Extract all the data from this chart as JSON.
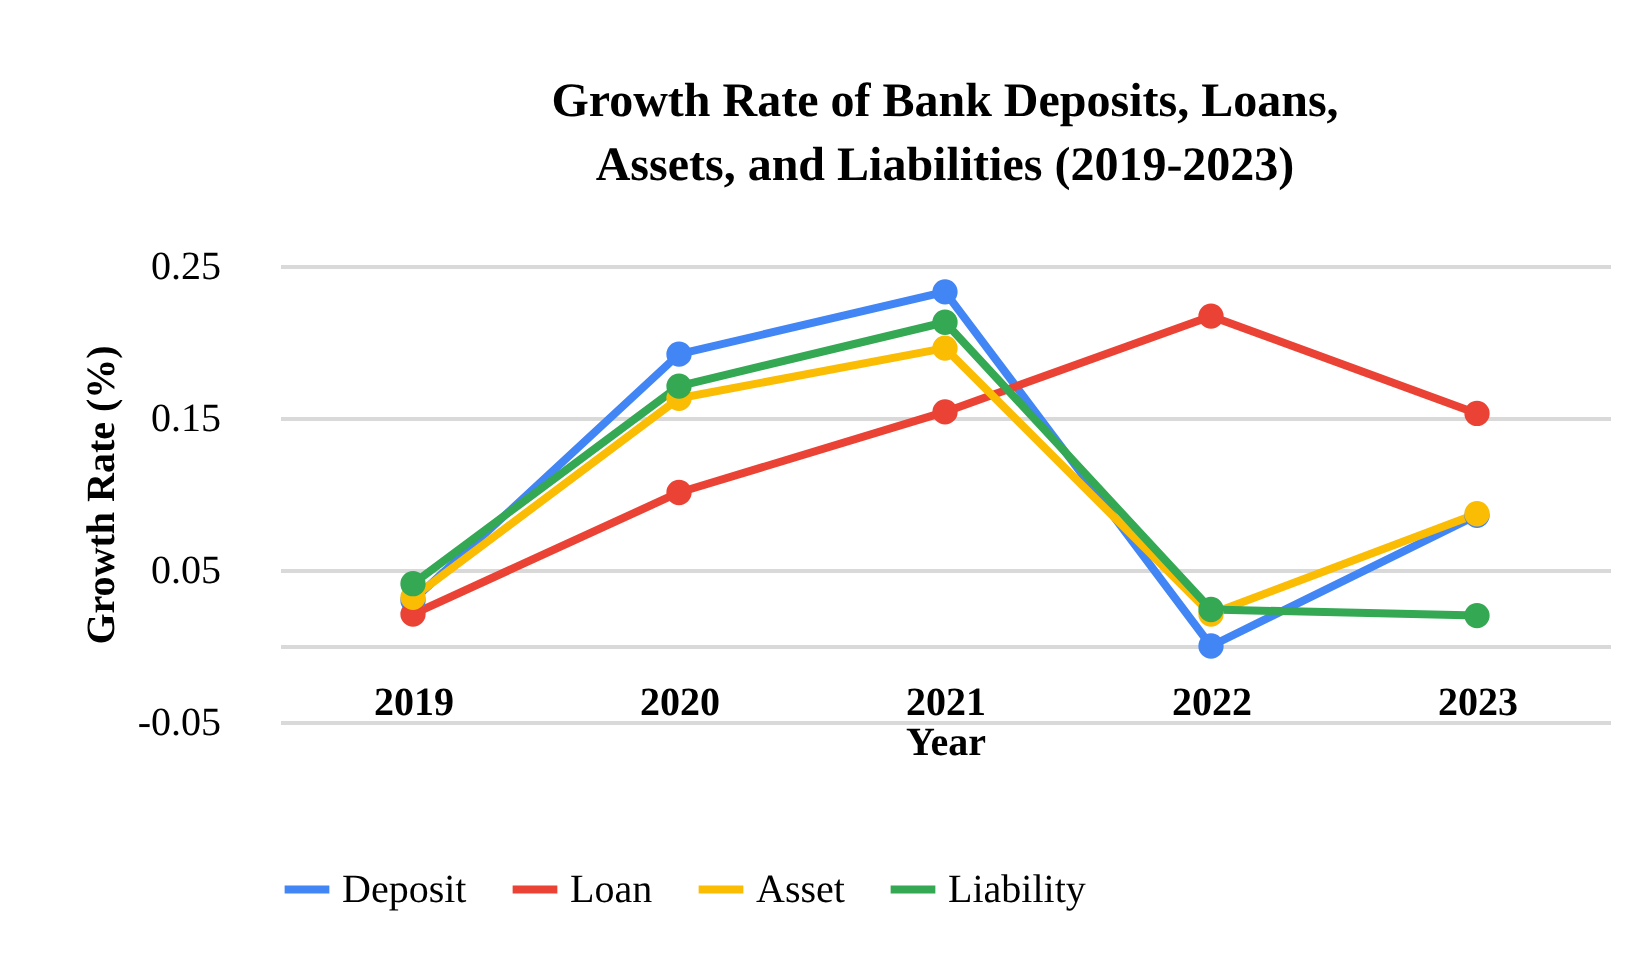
{
  "chart_data": {
    "type": "line",
    "title": "Growth Rate of Bank Deposits, Loans, Assets, and Liabilities (2019-2023)",
    "xlabel": "Year",
    "ylabel": "Growth Rate (%)",
    "categories": [
      "2019",
      "2020",
      "2021",
      "2022",
      "2023"
    ],
    "series": [
      {
        "name": "Deposit",
        "color": "#4285f4",
        "values": [
          0.03,
          0.192,
          0.233,
          0.0,
          0.086
        ]
      },
      {
        "name": "Loan",
        "color": "#ea4335",
        "values": [
          0.021,
          0.101,
          0.154,
          0.217,
          0.153
        ]
      },
      {
        "name": "Asset",
        "color": "#fbbc04",
        "values": [
          0.032,
          0.163,
          0.196,
          0.021,
          0.087
        ]
      },
      {
        "name": "Liability",
        "color": "#34a853",
        "values": [
          0.041,
          0.171,
          0.213,
          0.024,
          0.02
        ]
      }
    ],
    "ylim": [
      -0.05,
      0.25
    ],
    "yticks": [
      -0.05,
      {
        "value": 0,
        "label": null
      },
      0.05,
      0.15,
      0.25
    ],
    "grid": "y",
    "legend": "bottom",
    "marker": "circle",
    "line_style": "solid"
  }
}
